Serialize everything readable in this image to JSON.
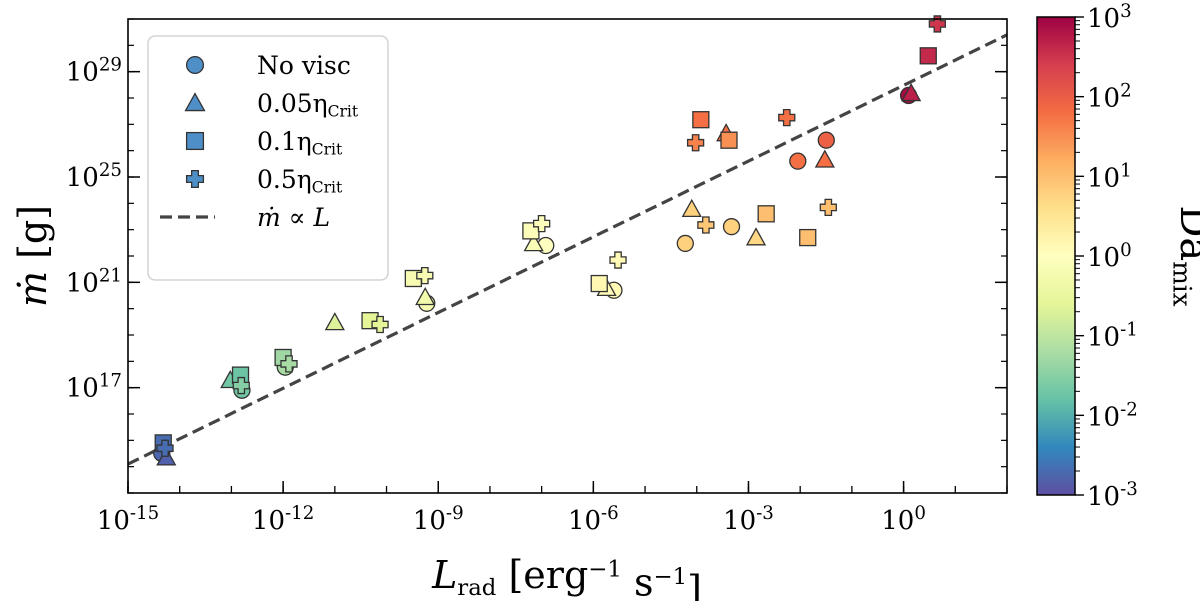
{
  "chart_data": {
    "type": "scatter",
    "xlabel": "L_rad [erg^-1 s^-1]",
    "ylabel": "ṁ [g]",
    "x_scale": "log",
    "y_scale": "log",
    "xlim": [
      1e-15,
      100.0
    ],
    "ylim": [
      10000000000000.0,
      1e+31
    ],
    "x_ticks": [
      {
        "exp": "-15"
      },
      {
        "exp": "-12"
      },
      {
        "exp": "-9"
      },
      {
        "exp": "-6"
      },
      {
        "exp": "-3"
      },
      {
        "exp": "0"
      }
    ],
    "y_ticks": [
      {
        "exp": "17"
      },
      {
        "exp": "21"
      },
      {
        "exp": "25"
      },
      {
        "exp": "29"
      }
    ],
    "grid": false,
    "legend_position": "top-left",
    "legend": [
      {
        "marker": "circle",
        "label": "No visc"
      },
      {
        "marker": "triangle",
        "label": "0.05η",
        "sub": "Crit"
      },
      {
        "marker": "square",
        "label": "0.1η",
        "sub": "Crit"
      },
      {
        "marker": "cross",
        "label": "0.5η",
        "sub": "Crit"
      },
      {
        "marker": "dashed-line",
        "label": "ṁ ∝ L"
      }
    ],
    "legend_marker_color": "#4f8fc8",
    "fit_line": {
      "style": "dashed",
      "color": "#444444",
      "x0": 1e-15,
      "y0": 126000000000000.0,
      "x1": 100.0,
      "y1": 2.5e+30
    },
    "colorbar": {
      "label": "Da",
      "label_sub": "mix",
      "scale": "log",
      "range": [
        0.001,
        1000.0
      ],
      "ticks": [
        {
          "exp": "-3"
        },
        {
          "exp": "-2"
        },
        {
          "exp": "-1"
        },
        {
          "exp": "0"
        },
        {
          "exp": "1"
        },
        {
          "exp": "2"
        },
        {
          "exp": "3"
        }
      ],
      "colormap": "Spectral_r",
      "stops": [
        "#5e4fa2",
        "#3288bd",
        "#66c2a5",
        "#abdda4",
        "#e6f598",
        "#ffffbf",
        "#fee08b",
        "#fdae61",
        "#f46d43",
        "#d53e4f",
        "#9e0142"
      ]
    },
    "series": [
      {
        "marker": "circle",
        "points": [
          {
            "x": 4.5e-15,
            "y": 320000000000000.0,
            "c": 0.0017
          },
          {
            "x": 1.6e-13,
            "y": 8e+16,
            "c": 0.02
          },
          {
            "x": 1.1e-12,
            "y": 6e+17,
            "c": 0.06
          },
          {
            "x": 6e-10,
            "y": 1.6e+20,
            "c": 0.6
          },
          {
            "x": 1.2e-07,
            "y": 2.5e+22,
            "c": 1.0
          },
          {
            "x": 2.5e-06,
            "y": 5e+20,
            "c": 1.3
          },
          {
            "x": 6e-05,
            "y": 3e+22,
            "c": 6
          },
          {
            "x": 0.00047,
            "y": 1.3e+23,
            "c": 6
          },
          {
            "x": 0.009,
            "y": 4e+25,
            "c": 60
          },
          {
            "x": 0.032,
            "y": 2.5e+26,
            "c": 90
          },
          {
            "x": 1.25,
            "y": 1.25e+28,
            "c": 800
          }
        ]
      },
      {
        "marker": "triangle",
        "points": [
          {
            "x": 5.5e-15,
            "y": 220000000000000.0,
            "c": 0.0015
          },
          {
            "x": 9.5e-14,
            "y": 1.9e+17,
            "c": 0.02
          },
          {
            "x": 1e-11,
            "y": 3e+19,
            "c": 0.2
          },
          {
            "x": 5.6e-10,
            "y": 2.7e+20,
            "c": 0.5
          },
          {
            "x": 7e-08,
            "y": 3e+22,
            "c": 0.7
          },
          {
            "x": 1.8e-06,
            "y": 6e+20,
            "c": 1.2
          },
          {
            "x": 8e-05,
            "y": 6e+23,
            "c": 6
          },
          {
            "x": 0.00037,
            "y": 4.5e+26,
            "c": 60
          },
          {
            "x": 0.0014,
            "y": 5e+22,
            "c": 5
          },
          {
            "x": 0.03,
            "y": 4.5e+25,
            "c": 60
          },
          {
            "x": 1.4,
            "y": 1.5e+28,
            "c": 500
          }
        ]
      },
      {
        "marker": "square",
        "points": [
          {
            "x": 4.8e-15,
            "y": 800000000000000.0,
            "c": 0.002
          },
          {
            "x": 1.5e-13,
            "y": 3e+17,
            "c": 0.018
          },
          {
            "x": 1e-12,
            "y": 1.4e+18,
            "c": 0.05
          },
          {
            "x": 4.8e-11,
            "y": 3.5e+19,
            "c": 0.25
          },
          {
            "x": 3.3e-10,
            "y": 1.4e+21,
            "c": 0.6
          },
          {
            "x": 6.2e-08,
            "y": 9e+22,
            "c": 0.8
          },
          {
            "x": 1.3e-06,
            "y": 9e+20,
            "c": 1.4
          },
          {
            "x": 0.00012,
            "y": 1.5e+27,
            "c": 60
          },
          {
            "x": 0.00042,
            "y": 2.5e+26,
            "c": 30
          },
          {
            "x": 0.0022,
            "y": 4e+23,
            "c": 10
          },
          {
            "x": 0.014,
            "y": 5e+22,
            "c": 10
          },
          {
            "x": 3.0,
            "y": 4e+29,
            "c": 400
          }
        ]
      },
      {
        "marker": "cross",
        "points": [
          {
            "x": 5.2e-15,
            "y": 500000000000000.0,
            "c": 0.002
          },
          {
            "x": 1.55e-13,
            "y": 1.2e+17,
            "c": 0.03
          },
          {
            "x": 1.3e-12,
            "y": 8e+17,
            "c": 0.06
          },
          {
            "x": 7.5e-11,
            "y": 2.5e+19,
            "c": 0.25
          },
          {
            "x": 5.5e-10,
            "y": 1.8e+21,
            "c": 0.6
          },
          {
            "x": 1e-07,
            "y": 1.7e+23,
            "c": 0.9
          },
          {
            "x": 3e-06,
            "y": 7e+21,
            "c": 1.3
          },
          {
            "x": 9.5e-05,
            "y": 2e+26,
            "c": 40
          },
          {
            "x": 0.00015,
            "y": 1.5e+23,
            "c": 8
          },
          {
            "x": 0.0055,
            "y": 1.8e+27,
            "c": 60
          },
          {
            "x": 0.035,
            "y": 7e+23,
            "c": 10
          },
          {
            "x": 4.5,
            "y": 6.5e+30,
            "c": 300
          }
        ]
      }
    ]
  }
}
